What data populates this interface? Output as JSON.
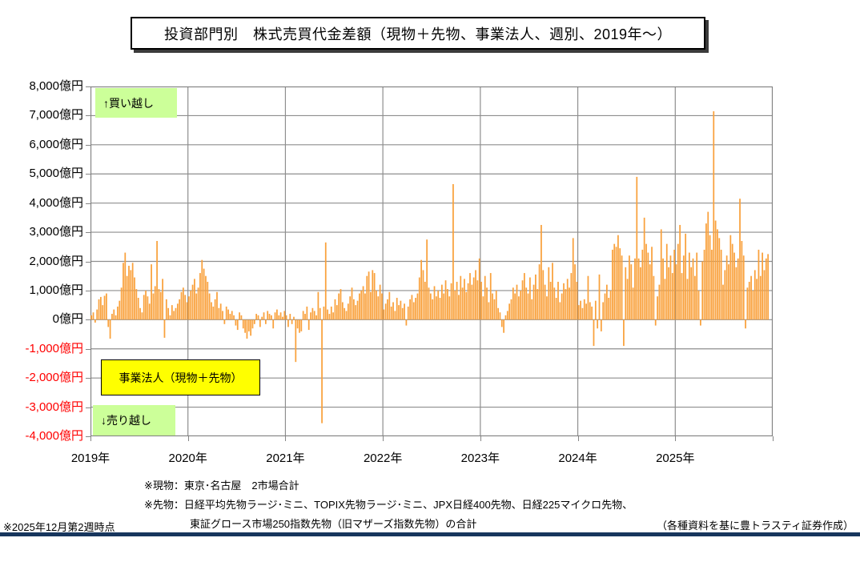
{
  "title": "投資部門別　株式売買代金差額（現物＋先物、事業法人、週別、2019年～）",
  "annotations": {
    "buy_label": "↑買い越し",
    "sell_label": "↓売り越し",
    "series_label": "事業法人（現物＋先物）"
  },
  "footnotes": {
    "spot_note": "※現物：東京･名古屋　2市場合計",
    "futures_note": "※先物：日経平均先物ラージ･ミニ、TOPIX先物ラージ･ミニ、JPX日経400先物、日経225マイクロ先物、",
    "futures_note2": "東証グロース市場250指数先物（旧マザーズ指数先物）の合計",
    "as_of": "※2025年12月第2週時点",
    "credit": "（各種資料を基に豊トラスティ証券作成）"
  },
  "colors": {
    "bar": "#f9a13c",
    "gridline": "#8e8e8e",
    "plot_border": "#7f7f7f",
    "negative_tick_label": "#ff0000",
    "positive_tick_label": "#000000",
    "annotation_green_bg": "#ccff99",
    "annotation_yellow_bg": "#ffff00",
    "bottom_rule": "#17365d"
  },
  "chart_data": {
    "type": "bar",
    "title": "投資部門別　株式売買代金差額（現物＋先物、事業法人、週別、2019年～）",
    "series_name": "事業法人（現物＋先物）",
    "unit": "億円",
    "frequency": "weekly",
    "ylim": [
      -4000,
      8000
    ],
    "grid_step": 1000,
    "grid": "on",
    "legend_position": "in-plot-label-box",
    "y_ticks": [
      {
        "v": 8000,
        "label": "8,000億円"
      },
      {
        "v": 7000,
        "label": "7,000億円"
      },
      {
        "v": 6000,
        "label": "6,000億円"
      },
      {
        "v": 5000,
        "label": "5,000億円"
      },
      {
        "v": 4000,
        "label": "4,000億円"
      },
      {
        "v": 3000,
        "label": "3,000億円"
      },
      {
        "v": 2000,
        "label": "2,000億円"
      },
      {
        "v": 1000,
        "label": "1,000億円"
      },
      {
        "v": 0,
        "label": "0億円"
      },
      {
        "v": -1000,
        "label": "-1,000億円"
      },
      {
        "v": -2000,
        "label": "-2,000億円"
      },
      {
        "v": -3000,
        "label": "-3,000億円"
      },
      {
        "v": -4000,
        "label": "-4,000億円"
      }
    ],
    "years": [
      {
        "label": "2019年",
        "values": [
          150,
          250,
          -100,
          350,
          700,
          780,
          500,
          820,
          900,
          -250,
          -650,
          200,
          350,
          150,
          450,
          650,
          1100,
          1950,
          2300,
          1500,
          1850,
          1700,
          1950,
          1450,
          1050,
          750,
          400,
          250,
          850,
          1000,
          800,
          550,
          1900,
          900,
          1150,
          2700,
          1050,
          950,
          1400,
          -620,
          700,
          400,
          150,
          500,
          300,
          400,
          550,
          700,
          950,
          1100,
          850,
          600
        ]
      },
      {
        "label": "2020年",
        "values": [
          800,
          1000,
          1200,
          1400,
          900,
          1100,
          1600,
          2050,
          1750,
          1500,
          1300,
          900,
          600,
          450,
          700,
          950,
          400,
          550,
          300,
          -150,
          450,
          350,
          200,
          300,
          150,
          -200,
          -350,
          250,
          150,
          -300,
          -450,
          -650,
          -400,
          -550,
          -300,
          -150,
          200,
          150,
          -250,
          100,
          250,
          -150,
          300,
          200,
          150,
          -300,
          250,
          350,
          150,
          250,
          100,
          300
        ]
      },
      {
        "label": "2021年",
        "values": [
          150,
          -250,
          200,
          -150,
          100,
          -1450,
          -300,
          -450,
          -400,
          300,
          200,
          450,
          -350,
          250,
          400,
          300,
          150,
          950,
          400,
          -3550,
          450,
          2650,
          350,
          200,
          450,
          250,
          700,
          500,
          900,
          1050,
          600,
          400,
          300,
          550,
          800,
          1100,
          700,
          500,
          650,
          900,
          1000,
          1150,
          900,
          1500,
          1650,
          950,
          1700,
          1600,
          1000,
          800,
          1200,
          900
        ]
      },
      {
        "label": "2022年",
        "values": [
          350,
          550,
          700,
          950,
          450,
          600,
          300,
          750,
          500,
          650,
          400,
          550,
          -200,
          450,
          700,
          850,
          600,
          750,
          900,
          1450,
          2050,
          1700,
          1300,
          2750,
          1100,
          900,
          700,
          1150,
          800,
          1000,
          750,
          1200,
          900,
          1350,
          1050,
          800,
          1250,
          4650,
          1000,
          1300,
          850,
          1500,
          1100,
          1400,
          950,
          1250,
          1600,
          1200,
          1450,
          1700,
          1350,
          2100
        ]
      },
      {
        "label": "2023年",
        "values": [
          1300,
          800,
          1500,
          1100,
          600,
          1600,
          900,
          700,
          1000,
          400,
          250,
          -250,
          -450,
          150,
          300,
          550,
          700,
          1100,
          900,
          1200,
          800,
          1000,
          1350,
          1600,
          1100,
          900,
          1450,
          700,
          1200,
          1550,
          1050,
          1900,
          3250,
          1700,
          1200,
          800,
          1800,
          1300,
          1950,
          1100,
          750,
          1300,
          600,
          900,
          1250,
          1050,
          1400,
          1100,
          1600,
          2800,
          1900,
          1300
        ]
      },
      {
        "label": "2024年",
        "values": [
          500,
          650,
          400,
          700,
          550,
          1500,
          600,
          450,
          -900,
          650,
          -300,
          1550,
          -400,
          600,
          900,
          1200,
          750,
          1000,
          2400,
          2600,
          2500,
          2900,
          2450,
          2200,
          -900,
          1800,
          1400,
          2200,
          1900,
          1100,
          2100,
          4900,
          2100,
          1800,
          2400,
          3500,
          2600,
          2300,
          1900,
          2500,
          1500,
          -200,
          800,
          1200,
          3100,
          2100,
          1400,
          2600,
          1800,
          2200,
          1600,
          2400
        ]
      },
      {
        "label": "2025年",
        "values": [
          1900,
          2600,
          3250,
          1600,
          2200,
          2950,
          1400,
          2300,
          1800,
          2100,
          1500,
          2300,
          1000,
          -200,
          2000,
          2400,
          3300,
          3700,
          2900,
          2400,
          7150,
          3400,
          3100,
          2800,
          2400,
          1200,
          1700,
          2200,
          1900,
          2900,
          2600,
          2300,
          1800,
          2100,
          4150,
          2700,
          2200,
          -300,
          1100,
          1300,
          1500,
          1000,
          1700,
          1400,
          2400,
          1500,
          2300,
          1700,
          2100,
          2250
        ]
      }
    ]
  }
}
